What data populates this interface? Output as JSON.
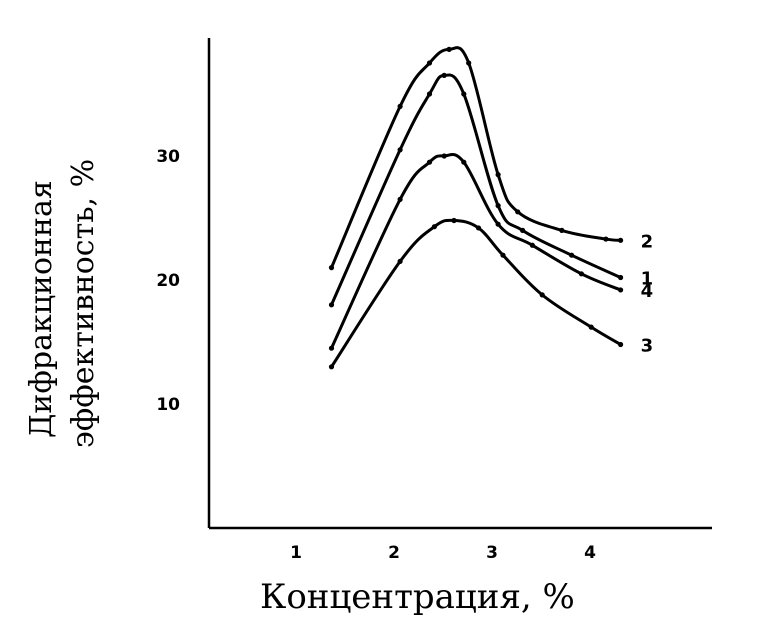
{
  "chart_data": {
    "type": "line",
    "title": "",
    "ylabel_line1": "Дифракционная",
    "ylabel_line2": "эффективность, %",
    "xlabel": "Концентрация, %",
    "xlim": [
      0,
      5
    ],
    "ylim": [
      0,
      40
    ],
    "xticks": [
      "1",
      "2",
      "3",
      "4"
    ],
    "yticks": [
      "10",
      "20",
      "30"
    ],
    "xtick_values": [
      1,
      2,
      3,
      4
    ],
    "ytick_values": [
      10,
      20,
      30
    ],
    "series": [
      {
        "name": "2",
        "points": [
          [
            1.25,
            21
          ],
          [
            1.95,
            34
          ],
          [
            2.25,
            37.5
          ],
          [
            2.45,
            38.6
          ],
          [
            2.65,
            37.5
          ],
          [
            2.95,
            28.5
          ],
          [
            3.15,
            25.5
          ],
          [
            3.6,
            24
          ],
          [
            4.05,
            23.3
          ],
          [
            4.2,
            23.2
          ]
        ]
      },
      {
        "name": "1",
        "points": [
          [
            1.25,
            18
          ],
          [
            1.95,
            30.5
          ],
          [
            2.25,
            35
          ],
          [
            2.4,
            36.5
          ],
          [
            2.6,
            35
          ],
          [
            2.95,
            26
          ],
          [
            3.2,
            24
          ],
          [
            3.7,
            22
          ],
          [
            4.2,
            20.2
          ]
        ]
      },
      {
        "name": "4",
        "points": [
          [
            1.25,
            14.5
          ],
          [
            1.95,
            26.5
          ],
          [
            2.25,
            29.5
          ],
          [
            2.4,
            30
          ],
          [
            2.6,
            29.5
          ],
          [
            2.95,
            24.5
          ],
          [
            3.3,
            22.8
          ],
          [
            3.8,
            20.5
          ],
          [
            4.2,
            19.2
          ]
        ]
      },
      {
        "name": "3",
        "points": [
          [
            1.25,
            13
          ],
          [
            1.95,
            21.5
          ],
          [
            2.3,
            24.3
          ],
          [
            2.5,
            24.8
          ],
          [
            2.75,
            24.2
          ],
          [
            3.0,
            22
          ],
          [
            3.4,
            18.8
          ],
          [
            3.9,
            16.2
          ],
          [
            4.2,
            14.8
          ]
        ]
      }
    ]
  }
}
